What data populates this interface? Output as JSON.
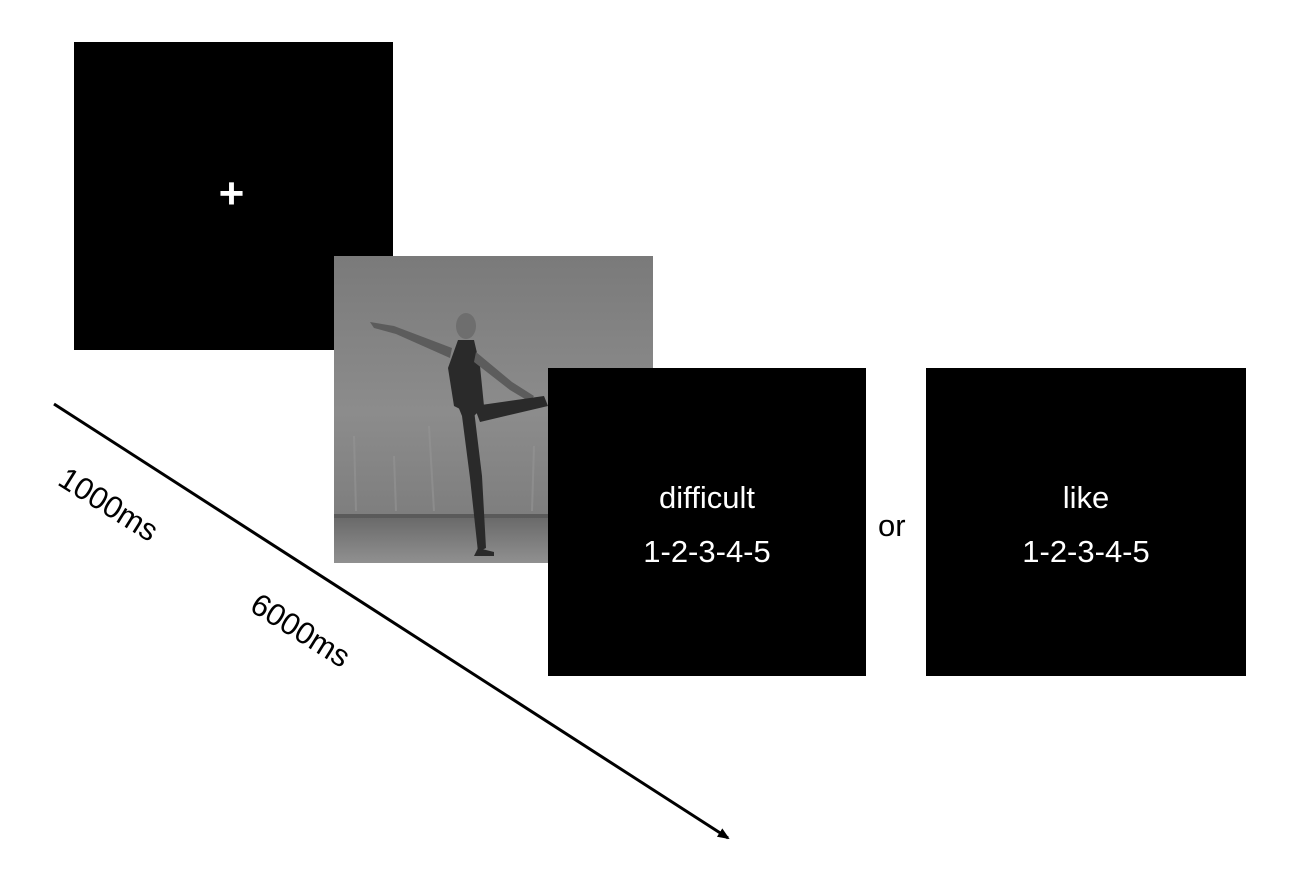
{
  "fixation": {
    "symbol": "+"
  },
  "stimulus": {
    "description_icon": "dancer-photo"
  },
  "rating_screens": [
    {
      "word": "difficult",
      "scale": "1-2-3-4-5"
    },
    {
      "word": "like",
      "scale": "1-2-3-4-5"
    }
  ],
  "connector": "or",
  "timeline": {
    "durations": [
      "1000ms",
      "6000ms"
    ]
  },
  "colors": {
    "screen": "#000000",
    "text_on_screen": "#ffffff",
    "background": "#ffffff",
    "photo_gray": "#8a8a8a"
  }
}
